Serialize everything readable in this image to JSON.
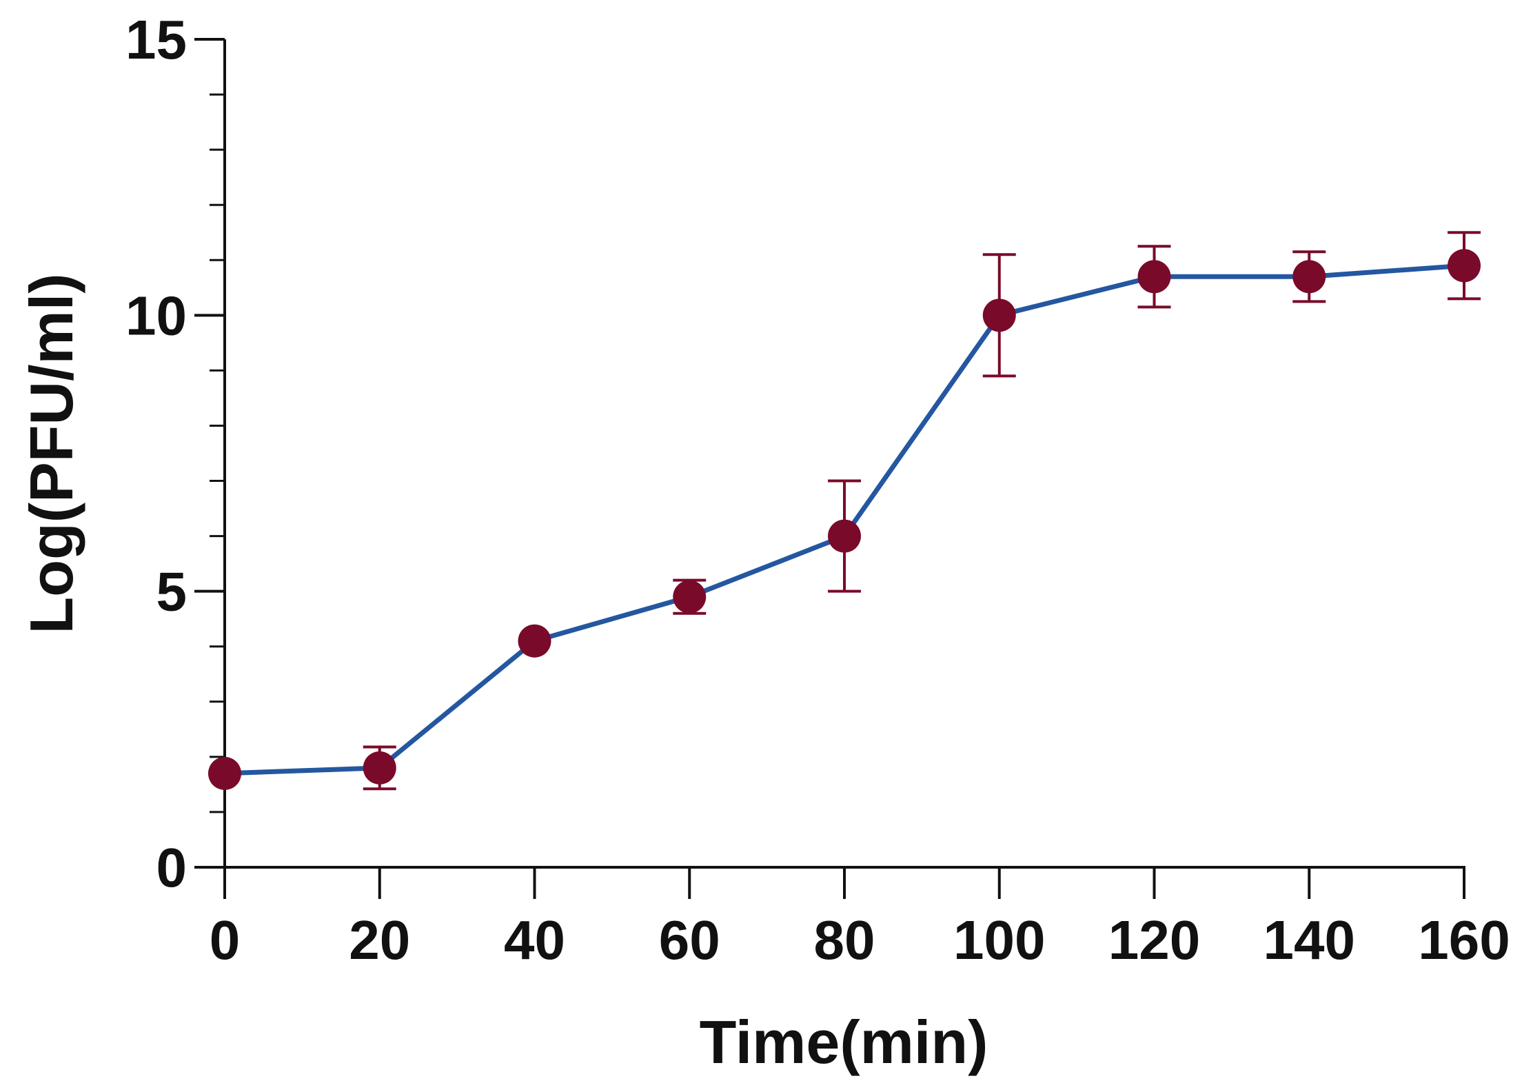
{
  "chart_data": {
    "type": "line",
    "title": "",
    "xlabel": "Time(min)",
    "ylabel": "Log(PFU/ml)",
    "xlim": [
      0,
      160
    ],
    "ylim": [
      0,
      15
    ],
    "x_ticks": [
      0,
      20,
      40,
      60,
      80,
      100,
      120,
      140,
      160
    ],
    "x_tick_labels": [
      "0",
      "20",
      "40",
      "60",
      "80",
      "100",
      "120",
      "140",
      "160"
    ],
    "y_ticks": [
      0,
      5,
      10,
      15
    ],
    "y_tick_labels": [
      "0",
      "5",
      "10",
      "15"
    ],
    "y_minor_step": 1,
    "grid": false,
    "series": [
      {
        "name": "Log(PFU/ml)",
        "x": [
          0,
          20,
          40,
          60,
          80,
          100,
          120,
          140,
          160
        ],
        "values": [
          1.7,
          1.8,
          4.1,
          4.9,
          6.0,
          10.0,
          10.7,
          10.7,
          10.9
        ],
        "error": [
          0.0,
          0.38,
          0.0,
          0.3,
          1.0,
          1.1,
          0.55,
          0.45,
          0.6
        ]
      }
    ],
    "colors": {
      "line": "#2457A0",
      "marker": "#7A0A2A",
      "error_bar": "#7A0A2A",
      "axis": "#111111"
    }
  }
}
